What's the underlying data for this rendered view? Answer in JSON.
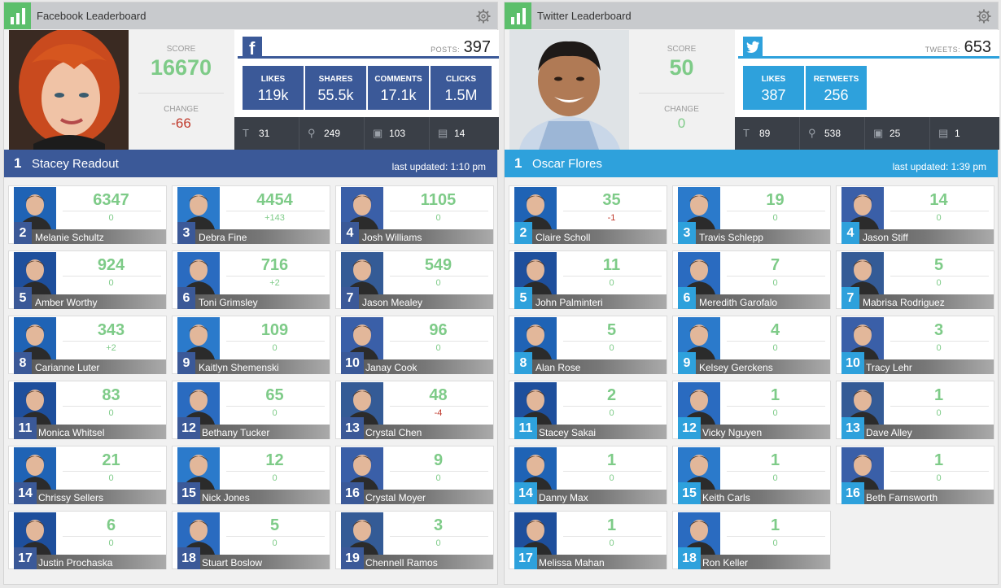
{
  "facebook": {
    "title": "Facebook Leaderboard",
    "score_label": "SCORE",
    "score": "16670",
    "change_label": "CHANGE",
    "change": "-66",
    "logo_letter": "f",
    "count_label": "POSTS:",
    "count": "397",
    "stats": [
      {
        "label": "LIKES",
        "value": "119k"
      },
      {
        "label": "SHARES",
        "value": "55.5k"
      },
      {
        "label": "COMMENTS",
        "value": "17.1k"
      },
      {
        "label": "CLICKS",
        "value": "1.5M"
      }
    ],
    "strip": [
      {
        "icon": "text-icon",
        "glyph": "T",
        "value": "31"
      },
      {
        "icon": "link-icon",
        "glyph": "⚲",
        "value": "249"
      },
      {
        "icon": "photo-icon",
        "glyph": "▣",
        "value": "103"
      },
      {
        "icon": "video-icon",
        "glyph": "▤",
        "value": "14"
      }
    ],
    "leader_rank": "1",
    "leader_name": "Stacey Readout",
    "updated": "last updated: 1:10 pm",
    "colors": {
      "accent": "#3b5998",
      "rule": "#3b5998"
    },
    "entries": [
      {
        "rank": "2",
        "name": "Melanie Schultz",
        "score": "6347",
        "delta": "0"
      },
      {
        "rank": "3",
        "name": "Debra Fine",
        "score": "4454",
        "delta": "+143"
      },
      {
        "rank": "4",
        "name": "Josh Williams",
        "score": "1105",
        "delta": "0"
      },
      {
        "rank": "5",
        "name": "Amber Worthy",
        "score": "924",
        "delta": "0"
      },
      {
        "rank": "6",
        "name": "Toni Grimsley",
        "score": "716",
        "delta": "+2"
      },
      {
        "rank": "7",
        "name": "Jason Mealey",
        "score": "549",
        "delta": "0"
      },
      {
        "rank": "8",
        "name": "Carianne Luter",
        "score": "343",
        "delta": "+2"
      },
      {
        "rank": "9",
        "name": "Kaitlyn Shemenski",
        "score": "109",
        "delta": "0"
      },
      {
        "rank": "10",
        "name": "Janay Cook",
        "score": "96",
        "delta": "0"
      },
      {
        "rank": "11",
        "name": "Monica Whitsel",
        "score": "83",
        "delta": "0"
      },
      {
        "rank": "12",
        "name": "Bethany Tucker",
        "score": "65",
        "delta": "0"
      },
      {
        "rank": "13",
        "name": "Crystal Chen",
        "score": "48",
        "delta": "-4"
      },
      {
        "rank": "14",
        "name": "Chrissy Sellers",
        "score": "21",
        "delta": "0"
      },
      {
        "rank": "15",
        "name": "Nick Jones",
        "score": "12",
        "delta": "0"
      },
      {
        "rank": "16",
        "name": "Crystal Moyer",
        "score": "9",
        "delta": "0"
      },
      {
        "rank": "17",
        "name": "Justin Prochaska",
        "score": "6",
        "delta": "0"
      },
      {
        "rank": "18",
        "name": "Stuart Boslow",
        "score": "5",
        "delta": "0"
      },
      {
        "rank": "19",
        "name": "Chennell Ramos",
        "score": "3",
        "delta": "0"
      }
    ]
  },
  "twitter": {
    "title": "Twitter Leaderboard",
    "score_label": "SCORE",
    "score": "50",
    "change_label": "CHANGE",
    "change": "0",
    "count_label": "TWEETS:",
    "count": "653",
    "stats": [
      {
        "label": "LIKES",
        "value": "387"
      },
      {
        "label": "RETWEETS",
        "value": "256"
      }
    ],
    "strip": [
      {
        "icon": "text-icon",
        "glyph": "T",
        "value": "89"
      },
      {
        "icon": "link-icon",
        "glyph": "⚲",
        "value": "538"
      },
      {
        "icon": "photo-icon",
        "glyph": "▣",
        "value": "25"
      },
      {
        "icon": "video-icon",
        "glyph": "▤",
        "value": "1"
      }
    ],
    "leader_rank": "1",
    "leader_name": "Oscar Flores",
    "updated": "last updated: 1:39 pm",
    "colors": {
      "accent": "#2ea1dc",
      "rule": "#2ea1dc"
    },
    "entries": [
      {
        "rank": "2",
        "name": "Claire Scholl",
        "score": "35",
        "delta": "-1"
      },
      {
        "rank": "3",
        "name": "Travis Schlepp",
        "score": "19",
        "delta": "0"
      },
      {
        "rank": "4",
        "name": "Jason Stiff",
        "score": "14",
        "delta": "0"
      },
      {
        "rank": "5",
        "name": "John Palminteri",
        "score": "11",
        "delta": "0"
      },
      {
        "rank": "6",
        "name": "Meredith Garofalo",
        "score": "7",
        "delta": "0"
      },
      {
        "rank": "7",
        "name": "Mabrisa Rodriguez",
        "score": "5",
        "delta": "0"
      },
      {
        "rank": "8",
        "name": "Alan Rose",
        "score": "5",
        "delta": "0"
      },
      {
        "rank": "9",
        "name": "Kelsey Gerckens",
        "score": "4",
        "delta": "0"
      },
      {
        "rank": "10",
        "name": "Tracy Lehr",
        "score": "3",
        "delta": "0"
      },
      {
        "rank": "11",
        "name": "Stacey Sakai",
        "score": "2",
        "delta": "0"
      },
      {
        "rank": "12",
        "name": "Vicky Nguyen",
        "score": "1",
        "delta": "0"
      },
      {
        "rank": "13",
        "name": "Dave Alley",
        "score": "1",
        "delta": "0"
      },
      {
        "rank": "14",
        "name": "Danny Max",
        "score": "1",
        "delta": "0"
      },
      {
        "rank": "15",
        "name": "Keith Carls",
        "score": "1",
        "delta": "0"
      },
      {
        "rank": "16",
        "name": "Beth Farnsworth",
        "score": "1",
        "delta": "0"
      },
      {
        "rank": "17",
        "name": "Melissa Mahan",
        "score": "1",
        "delta": "0"
      },
      {
        "rank": "18",
        "name": "Ron Keller",
        "score": "1",
        "delta": "0"
      }
    ]
  }
}
